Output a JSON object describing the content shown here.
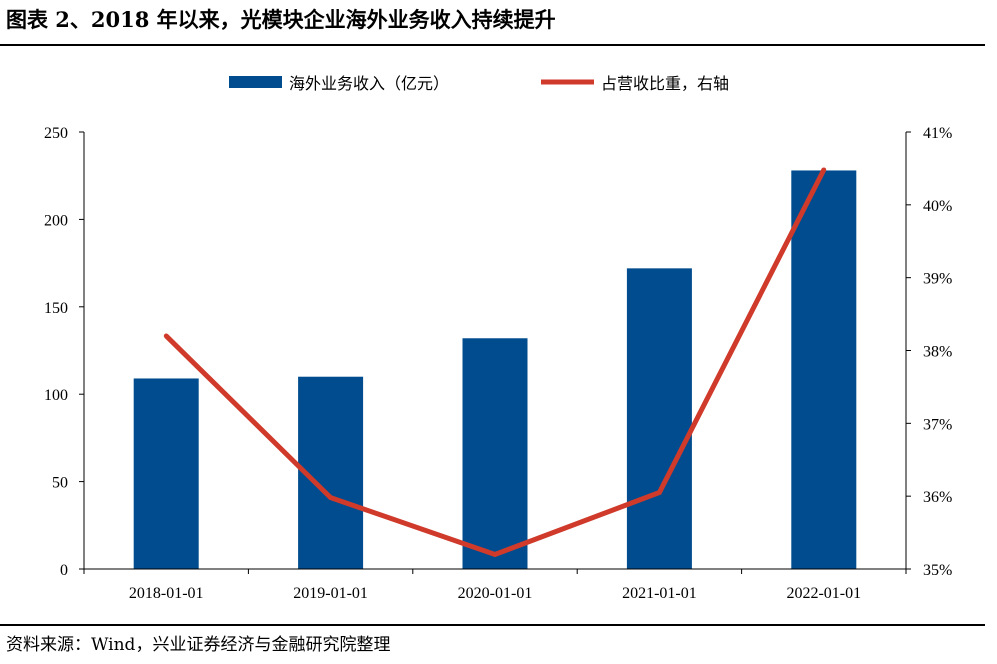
{
  "title": "图表 2、2018 年以来，光模块企业海外业务收入持续提升",
  "source": "资料来源：Wind，兴业证券经济与金融研究院整理",
  "colors": {
    "bar": "#004c8e",
    "line": "#d03a2b",
    "axis": "#000000"
  },
  "chart_data": {
    "type": "bar",
    "categories": [
      "2018-01-01",
      "2019-01-01",
      "2020-01-01",
      "2021-01-01",
      "2022-01-01"
    ],
    "series": [
      {
        "name": "海外业务收入（亿元）",
        "type": "bar",
        "axis": "left",
        "values": [
          109,
          110,
          132,
          172,
          228
        ]
      },
      {
        "name": "占营收比重，右轴",
        "type": "line",
        "axis": "right",
        "values": [
          38.2,
          35.98,
          35.2,
          36.05,
          40.48
        ]
      }
    ],
    "ylim_left": [
      0,
      250
    ],
    "yticks_left": [
      "0",
      "50",
      "100",
      "150",
      "200",
      "250"
    ],
    "ylim_right": [
      35,
      41
    ],
    "yticks_right": [
      "35%",
      "36%",
      "37%",
      "38%",
      "39%",
      "40%",
      "41%"
    ],
    "grid": false,
    "legend_position": "top"
  }
}
